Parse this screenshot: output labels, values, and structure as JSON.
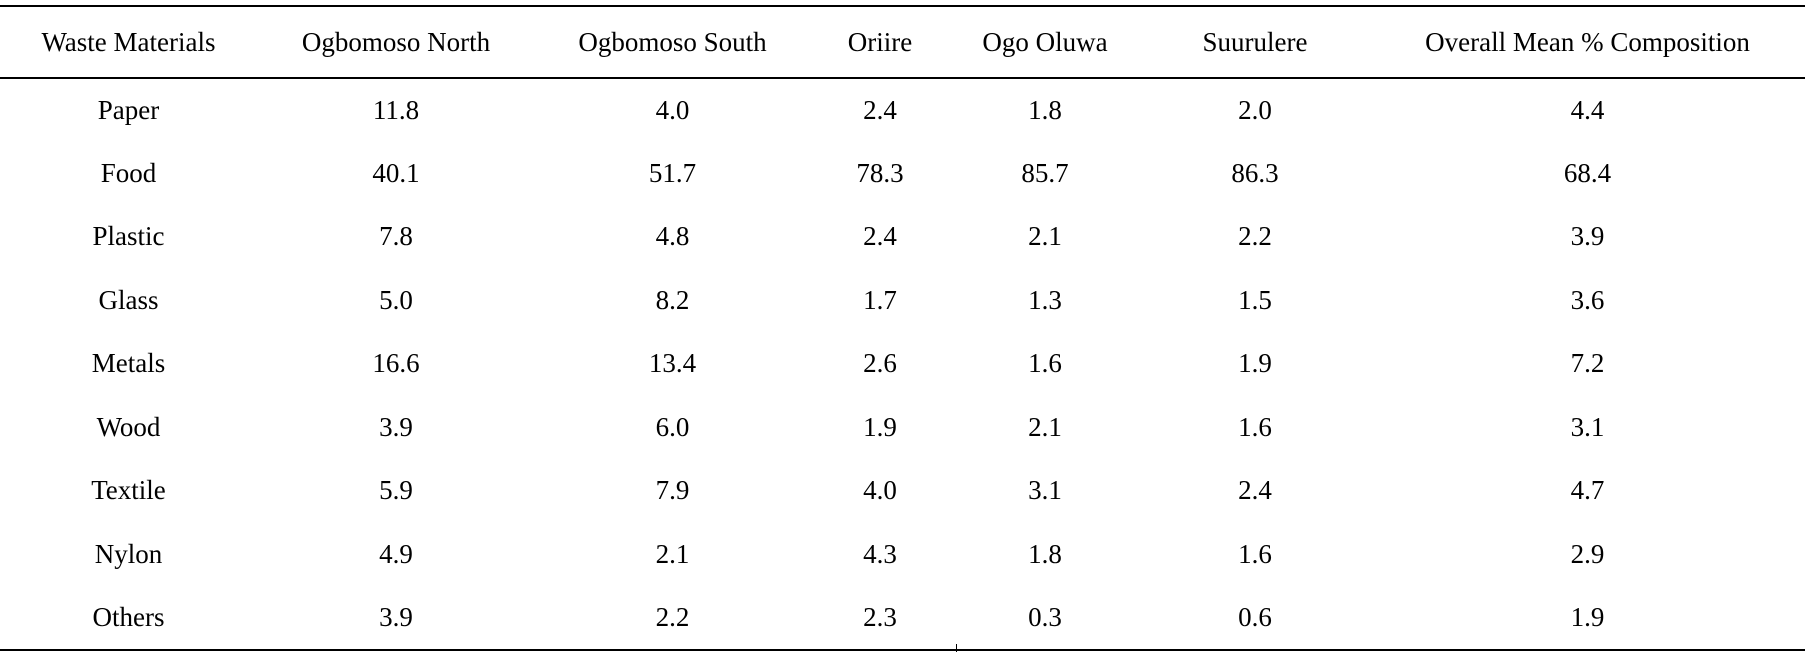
{
  "table": {
    "columns": [
      "Waste Materials",
      "Ogbomoso North",
      "Ogbomoso South",
      "Oriire",
      "Ogo Oluwa",
      "Suurulere",
      "Overall Mean % Composition"
    ],
    "rows": [
      [
        "Paper",
        "11.8",
        "4.0",
        "2.4",
        "1.8",
        "2.0",
        "4.4"
      ],
      [
        "Food",
        "40.1",
        "51.7",
        "78.3",
        "85.7",
        "86.3",
        "68.4"
      ],
      [
        "Plastic",
        "7.8",
        "4.8",
        "2.4",
        "2.1",
        "2.2",
        "3.9"
      ],
      [
        "Glass",
        "5.0",
        "8.2",
        "1.7",
        "1.3",
        "1.5",
        "3.6"
      ],
      [
        "Metals",
        "16.6",
        "13.4",
        "2.6",
        "1.6",
        "1.9",
        "7.2"
      ],
      [
        "Wood",
        "3.9",
        "6.0",
        "1.9",
        "2.1",
        "1.6",
        "3.1"
      ],
      [
        "Textile",
        "5.9",
        "7.9",
        "4.0",
        "3.1",
        "2.4",
        "4.7"
      ],
      [
        "Nylon",
        "4.9",
        "2.1",
        "4.3",
        "1.8",
        "1.6",
        "2.9"
      ],
      [
        "Others",
        "3.9",
        "2.2",
        "2.3",
        "0.3",
        "0.6",
        "1.9"
      ]
    ]
  }
}
